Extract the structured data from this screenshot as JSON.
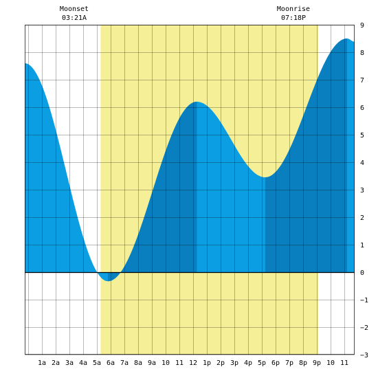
{
  "chart_data": {
    "type": "area",
    "title": "",
    "xlabel": "",
    "ylabel": "",
    "x_range_hours": [
      -0.25,
      23.75
    ],
    "ylim": [
      -3,
      9
    ],
    "y_ticks": [
      -3,
      -2,
      -1,
      0,
      1,
      2,
      3,
      4,
      5,
      6,
      7,
      8,
      9
    ],
    "x_ticks": [
      {
        "hour": 1,
        "label": "1a"
      },
      {
        "hour": 2,
        "label": "2a"
      },
      {
        "hour": 3,
        "label": "3a"
      },
      {
        "hour": 4,
        "label": "4a"
      },
      {
        "hour": 5,
        "label": "5a"
      },
      {
        "hour": 6,
        "label": "6a"
      },
      {
        "hour": 7,
        "label": "7a"
      },
      {
        "hour": 8,
        "label": "8a"
      },
      {
        "hour": 9,
        "label": "9a"
      },
      {
        "hour": 10,
        "label": "10"
      },
      {
        "hour": 11,
        "label": "11"
      },
      {
        "hour": 12,
        "label": "12"
      },
      {
        "hour": 13,
        "label": "1p"
      },
      {
        "hour": 14,
        "label": "2p"
      },
      {
        "hour": 15,
        "label": "3p"
      },
      {
        "hour": 16,
        "label": "4p"
      },
      {
        "hour": 17,
        "label": "5p"
      },
      {
        "hour": 18,
        "label": "6p"
      },
      {
        "hour": 19,
        "label": "7p"
      },
      {
        "hour": 20,
        "label": "8p"
      },
      {
        "hour": 21,
        "label": "9p"
      },
      {
        "hour": 22,
        "label": "10"
      },
      {
        "hour": 23,
        "label": "11"
      }
    ],
    "grid": true,
    "daylight": {
      "start_hour": 5.27,
      "end_hour": 21.1,
      "color": "#f5f097"
    },
    "annotations": [
      {
        "label": "Moonset",
        "time": "03:21A",
        "hour": 3.35
      },
      {
        "label": "Moonrise",
        "time": "07:18P",
        "hour": 19.3
      }
    ],
    "tide_extrema": [
      {
        "hour": -0.25,
        "height": 7.6
      },
      {
        "hour": 5.8,
        "height": -0.33
      },
      {
        "hour": 12.27,
        "height": 6.2
      },
      {
        "hour": 17.25,
        "height": 3.45
      },
      {
        "hour": 23.2,
        "height": 8.5
      },
      {
        "hour": 23.75,
        "height": 8.38
      }
    ],
    "shade_bands": [
      {
        "from_hour": 5.8,
        "to_hour": 12.27,
        "color": "#0a7fbf"
      },
      {
        "from_hour": 17.25,
        "to_hour": 23.2,
        "color": "#0a7fbf"
      }
    ],
    "colors": {
      "tide": "#0b9ee3",
      "tide_rising": "#0a7fbf",
      "grid": "#000000",
      "daylight": "#f5f097"
    }
  }
}
